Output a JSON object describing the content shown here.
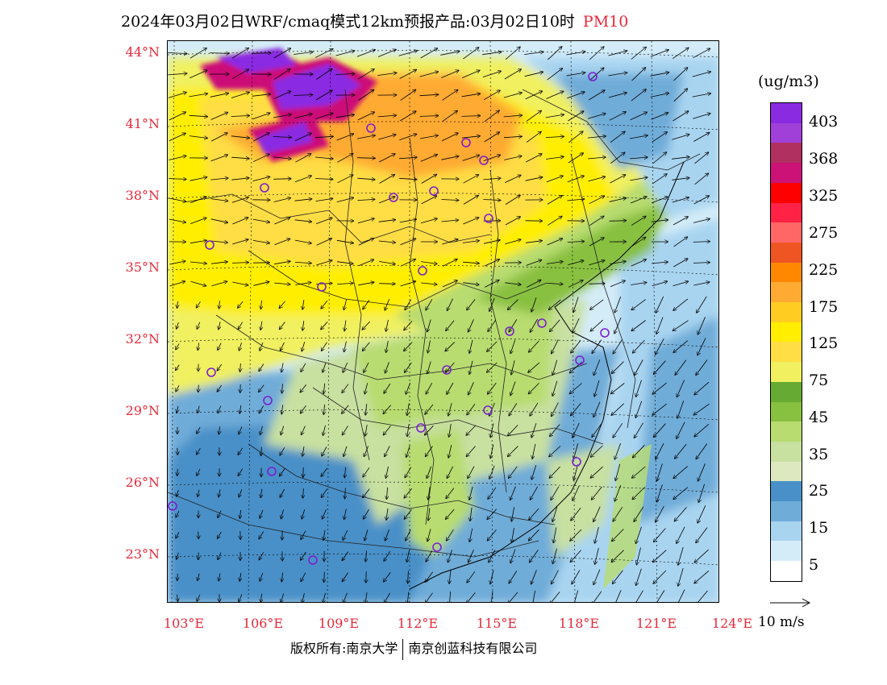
{
  "title": {
    "text": "2024年03月02日WRF/cmaq模式12km预报产品:03月02日10时",
    "pollutant": "PM10"
  },
  "axes": {
    "lat_labels": [
      "44°N",
      "41°N",
      "38°N",
      "35°N",
      "32°N",
      "29°N",
      "26°N",
      "23°N"
    ],
    "lon_labels": [
      "103°E",
      "106°E",
      "109°E",
      "112°E",
      "115°E",
      "118°E",
      "121°E",
      "124°E"
    ]
  },
  "legend": {
    "unit": "(ug/m3)",
    "colors": [
      "#8a2be2",
      "#a040d8",
      "#b03060",
      "#cc1177",
      "#ff0000",
      "#ff2244",
      "#ff6666",
      "#ee5522",
      "#ff8800",
      "#ffaa33",
      "#ffcc22",
      "#ffee00",
      "#ffdd44",
      "#f0f060",
      "#66aa33",
      "#88c040",
      "#b8dc70",
      "#c8e0a0",
      "#dde8c0",
      "#4a90c8",
      "#70acd8",
      "#a8d4f0",
      "#d4ecf8",
      "#ffffff"
    ],
    "labels": [
      "403",
      "368",
      "325",
      "275",
      "225",
      "175",
      "125",
      "75",
      "45",
      "35",
      "25",
      "15",
      "5"
    ]
  },
  "wind_scale": {
    "label": "10 m/s"
  },
  "credit": {
    "left": "版权所有:南京大学",
    "right": "南京创蓝科技有限公司"
  }
}
